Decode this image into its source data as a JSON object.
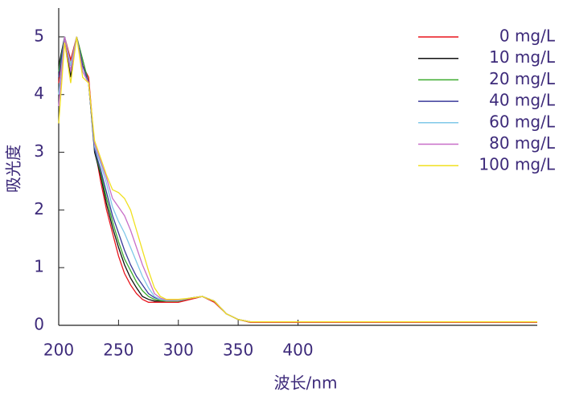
{
  "chart_data": {
    "type": "line",
    "xlabel": "波长/nm",
    "ylabel": "吸光度",
    "xlim": [
      200,
      600
    ],
    "xticks": [
      200,
      250,
      300,
      350,
      400
    ],
    "ylim": [
      0,
      5.5
    ],
    "yticks": [
      0,
      1,
      2,
      3,
      4,
      5
    ],
    "legend": "upper right",
    "x": [
      200,
      205,
      210,
      215,
      220,
      225,
      230,
      235,
      240,
      245,
      250,
      255,
      260,
      265,
      270,
      275,
      280,
      285,
      290,
      300,
      310,
      320,
      330,
      340,
      350,
      360,
      400,
      450,
      500,
      550,
      600
    ],
    "series": [
      {
        "name": "0 mg/L",
        "color": "#e8141c",
        "values": [
          4.2,
          5,
          4.6,
          5,
          4.5,
          4.3,
          3.1,
          2.5,
          2.0,
          1.6,
          1.2,
          0.9,
          0.7,
          0.55,
          0.45,
          0.4,
          0.4,
          0.4,
          0.4,
          0.4,
          0.45,
          0.5,
          0.4,
          0.2,
          0.1,
          0.05,
          0.05,
          0.05,
          0.05,
          0.05,
          0.05
        ]
      },
      {
        "name": "10 mg/L",
        "color": "#111111",
        "values": [
          4.5,
          5,
          4.3,
          5,
          4.6,
          4.2,
          3.0,
          2.6,
          2.1,
          1.7,
          1.35,
          1.05,
          0.82,
          0.65,
          0.5,
          0.45,
          0.42,
          0.42,
          0.42,
          0.42,
          0.47,
          0.5,
          0.42,
          0.2,
          0.1,
          0.06,
          0.06,
          0.06,
          0.06,
          0.06,
          0.06
        ]
      },
      {
        "name": "20 mg/L",
        "color": "#3cab2d",
        "values": [
          4.4,
          5,
          4.5,
          5,
          4.6,
          4.2,
          3.05,
          2.65,
          2.2,
          1.8,
          1.45,
          1.15,
          0.95,
          0.75,
          0.6,
          0.5,
          0.45,
          0.43,
          0.42,
          0.42,
          0.47,
          0.5,
          0.42,
          0.2,
          0.1,
          0.06,
          0.06,
          0.06,
          0.06,
          0.06,
          0.06
        ]
      },
      {
        "name": "40 mg/L",
        "color": "#3a3a9a",
        "values": [
          4.3,
          5,
          4.4,
          5,
          4.5,
          4.2,
          3.05,
          2.7,
          2.3,
          1.9,
          1.6,
          1.3,
          1.05,
          0.85,
          0.7,
          0.55,
          0.48,
          0.45,
          0.43,
          0.43,
          0.47,
          0.5,
          0.42,
          0.2,
          0.1,
          0.06,
          0.06,
          0.06,
          0.06,
          0.06,
          0.06
        ]
      },
      {
        "name": "60 mg/L",
        "color": "#7fc8e8",
        "values": [
          4.0,
          5,
          4.5,
          5,
          4.4,
          4.2,
          3.1,
          2.8,
          2.45,
          2.05,
          1.8,
          1.6,
          1.35,
          1.1,
          0.85,
          0.65,
          0.5,
          0.45,
          0.43,
          0.43,
          0.47,
          0.5,
          0.42,
          0.2,
          0.1,
          0.06,
          0.06,
          0.06,
          0.06,
          0.06,
          0.06
        ]
      },
      {
        "name": "80 mg/L",
        "color": "#c86ec8",
        "values": [
          3.8,
          5,
          4.4,
          5,
          4.4,
          4.2,
          3.15,
          2.85,
          2.55,
          2.2,
          2.05,
          1.9,
          1.65,
          1.35,
          1.05,
          0.8,
          0.55,
          0.47,
          0.44,
          0.44,
          0.47,
          0.5,
          0.42,
          0.2,
          0.1,
          0.06,
          0.06,
          0.06,
          0.06,
          0.06,
          0.06
        ]
      },
      {
        "name": "100 mg/L",
        "color": "#f0e020",
        "values": [
          3.5,
          4.9,
          4.2,
          5,
          4.3,
          4.2,
          3.2,
          2.9,
          2.6,
          2.35,
          2.3,
          2.2,
          2.0,
          1.65,
          1.3,
          0.95,
          0.65,
          0.5,
          0.45,
          0.45,
          0.47,
          0.5,
          0.42,
          0.2,
          0.1,
          0.06,
          0.06,
          0.06,
          0.06,
          0.06,
          0.06
        ]
      }
    ]
  }
}
